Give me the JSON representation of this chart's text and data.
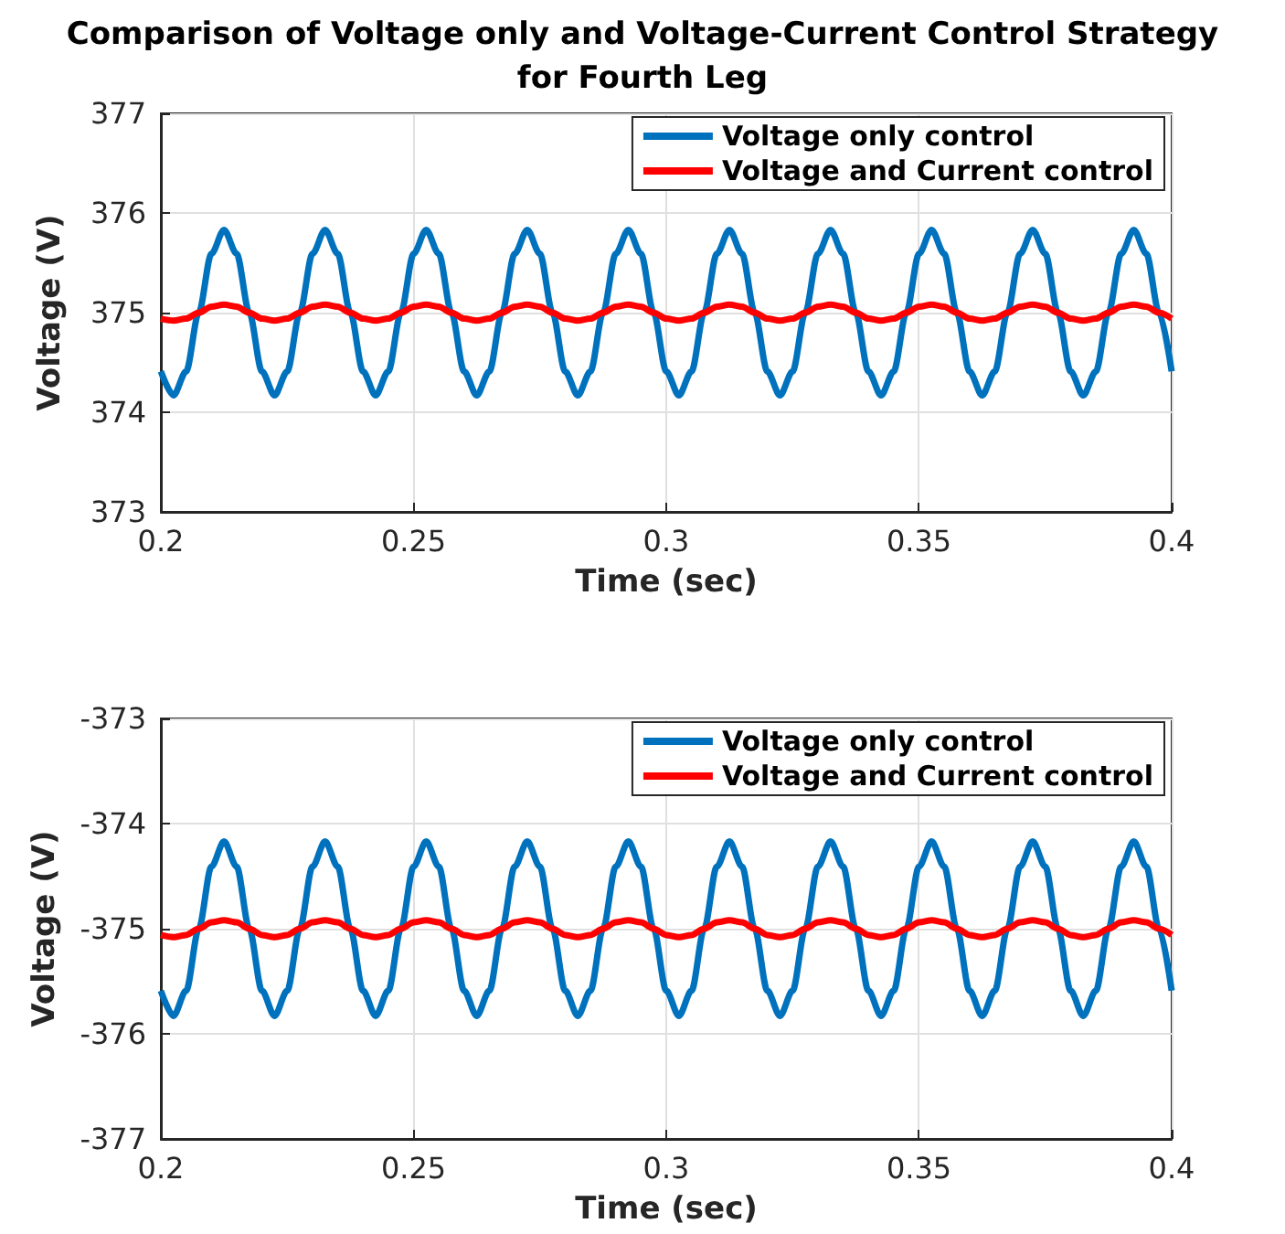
{
  "chart_data": [
    {
      "type": "line",
      "title": "Comparison of Voltage only and Voltage-Current Control Strategy\nfor Fourth Leg",
      "xlabel": "Time (sec)",
      "ylabel": "Voltage (V)",
      "x": [
        0.2,
        0.2025,
        0.205,
        0.2075,
        0.21,
        0.2125,
        0.215,
        0.2175,
        0.22,
        0.2225,
        0.225,
        0.2275,
        0.23,
        0.2325,
        0.235,
        0.2375,
        0.24,
        0.2425,
        0.245,
        0.2475,
        0.25,
        0.2525,
        0.255,
        0.2575,
        0.26,
        0.2625,
        0.265,
        0.2675,
        0.27,
        0.2725,
        0.275,
        0.2775,
        0.28,
        0.2825,
        0.285,
        0.2875,
        0.29,
        0.2925,
        0.295,
        0.2975,
        0.3,
        0.3025,
        0.305,
        0.3075,
        0.31,
        0.3125,
        0.315,
        0.3175,
        0.32,
        0.3225,
        0.325,
        0.3275,
        0.33,
        0.3325,
        0.335,
        0.3375,
        0.34,
        0.3425,
        0.345,
        0.3475,
        0.35,
        0.3525,
        0.355,
        0.3575,
        0.36,
        0.3625,
        0.365,
        0.3675,
        0.37,
        0.3725,
        0.375,
        0.3775,
        0.38,
        0.3825,
        0.385,
        0.3875,
        0.39,
        0.3925,
        0.395,
        0.3975,
        0.4
      ],
      "series": [
        {
          "name": "Voltage only control",
          "color": "#0072bd",
          "values": [
            374.41,
            374.17,
            374.41,
            375.0,
            375.59,
            375.83,
            375.59,
            375.0,
            374.41,
            374.17,
            374.41,
            375.0,
            375.59,
            375.83,
            375.59,
            375.0,
            374.41,
            374.17,
            374.41,
            375.0,
            375.59,
            375.83,
            375.59,
            375.0,
            374.41,
            374.17,
            374.41,
            375.0,
            375.59,
            375.83,
            375.59,
            375.0,
            374.41,
            374.17,
            374.41,
            375.0,
            375.59,
            375.83,
            375.59,
            375.0,
            374.41,
            374.17,
            374.41,
            375.0,
            375.59,
            375.83,
            375.59,
            375.0,
            374.41,
            374.17,
            374.41,
            375.0,
            375.59,
            375.83,
            375.59,
            375.0,
            374.41,
            374.17,
            374.41,
            375.0,
            375.59,
            375.83,
            375.59,
            375.0,
            374.41,
            374.17,
            374.41,
            375.0,
            375.59,
            375.83,
            375.59,
            375.0,
            374.41,
            374.17,
            374.41,
            375.0,
            375.59,
            375.83,
            375.59,
            375.0,
            374.41
          ]
        },
        {
          "name": "Voltage and Current control",
          "color": "#ff0000",
          "values": [
            374.94,
            374.92,
            374.94,
            375.0,
            375.06,
            375.08,
            375.06,
            375.0,
            374.94,
            374.92,
            374.94,
            375.0,
            375.06,
            375.08,
            375.06,
            375.0,
            374.94,
            374.92,
            374.94,
            375.0,
            375.06,
            375.08,
            375.06,
            375.0,
            374.94,
            374.92,
            374.94,
            375.0,
            375.06,
            375.08,
            375.06,
            375.0,
            374.94,
            374.92,
            374.94,
            375.0,
            375.06,
            375.08,
            375.06,
            375.0,
            374.94,
            374.92,
            374.94,
            375.0,
            375.06,
            375.08,
            375.06,
            375.0,
            374.94,
            374.92,
            374.94,
            375.0,
            375.06,
            375.08,
            375.06,
            375.0,
            374.94,
            374.92,
            374.94,
            375.0,
            375.06,
            375.08,
            375.06,
            375.0,
            374.94,
            374.92,
            374.94,
            375.0,
            375.06,
            375.08,
            375.06,
            375.0,
            374.94,
            374.92,
            374.94,
            375.0,
            375.06,
            375.08,
            375.06,
            375.0,
            374.94
          ]
        }
      ],
      "xlim": [
        0.2,
        0.4
      ],
      "xticks": [
        0.2,
        0.25,
        0.3,
        0.35,
        0.4
      ],
      "ylim": [
        373,
        377
      ],
      "yticks": [
        373,
        374,
        375,
        376,
        377
      ],
      "grid": true,
      "legend": "top right",
      "marker": "none",
      "line_style": "solid"
    },
    {
      "type": "line",
      "xlabel": "Time (sec)",
      "ylabel": "Voltage (V)",
      "x": [
        0.2,
        0.2025,
        0.205,
        0.2075,
        0.21,
        0.2125,
        0.215,
        0.2175,
        0.22,
        0.2225,
        0.225,
        0.2275,
        0.23,
        0.2325,
        0.235,
        0.2375,
        0.24,
        0.2425,
        0.245,
        0.2475,
        0.25,
        0.2525,
        0.255,
        0.2575,
        0.26,
        0.2625,
        0.265,
        0.2675,
        0.27,
        0.2725,
        0.275,
        0.2775,
        0.28,
        0.2825,
        0.285,
        0.2875,
        0.29,
        0.2925,
        0.295,
        0.2975,
        0.3,
        0.3025,
        0.305,
        0.3075,
        0.31,
        0.3125,
        0.315,
        0.3175,
        0.32,
        0.3225,
        0.325,
        0.3275,
        0.33,
        0.3325,
        0.335,
        0.3375,
        0.34,
        0.3425,
        0.345,
        0.3475,
        0.35,
        0.3525,
        0.355,
        0.3575,
        0.36,
        0.3625,
        0.365,
        0.3675,
        0.37,
        0.3725,
        0.375,
        0.3775,
        0.38,
        0.3825,
        0.385,
        0.3875,
        0.39,
        0.3925,
        0.395,
        0.3975,
        0.4
      ],
      "series": [
        {
          "name": "Voltage only control",
          "color": "#0072bd",
          "values": [
            -375.59,
            -375.83,
            -375.59,
            -375.0,
            -374.41,
            -374.17,
            -374.41,
            -375.0,
            -375.59,
            -375.83,
            -375.59,
            -375.0,
            -374.41,
            -374.17,
            -374.41,
            -375.0,
            -375.59,
            -375.83,
            -375.59,
            -375.0,
            -374.41,
            -374.17,
            -374.41,
            -375.0,
            -375.59,
            -375.83,
            -375.59,
            -375.0,
            -374.41,
            -374.17,
            -374.41,
            -375.0,
            -375.59,
            -375.83,
            -375.59,
            -375.0,
            -374.41,
            -374.17,
            -374.41,
            -375.0,
            -375.59,
            -375.83,
            -375.59,
            -375.0,
            -374.41,
            -374.17,
            -374.41,
            -375.0,
            -375.59,
            -375.83,
            -375.59,
            -375.0,
            -374.41,
            -374.17,
            -374.41,
            -375.0,
            -375.59,
            -375.83,
            -375.59,
            -375.0,
            -374.41,
            -374.17,
            -374.41,
            -375.0,
            -375.59,
            -375.83,
            -375.59,
            -375.0,
            -374.41,
            -374.17,
            -374.41,
            -375.0,
            -375.59,
            -375.83,
            -375.59,
            -375.0,
            -374.41,
            -374.17,
            -374.41,
            -375.0,
            -375.59
          ]
        },
        {
          "name": "Voltage and Current control",
          "color": "#ff0000",
          "values": [
            -375.06,
            -375.08,
            -375.06,
            -375.0,
            -374.94,
            -374.92,
            -374.94,
            -375.0,
            -375.06,
            -375.08,
            -375.06,
            -375.0,
            -374.94,
            -374.92,
            -374.94,
            -375.0,
            -375.06,
            -375.08,
            -375.06,
            -375.0,
            -374.94,
            -374.92,
            -374.94,
            -375.0,
            -375.06,
            -375.08,
            -375.06,
            -375.0,
            -374.94,
            -374.92,
            -374.94,
            -375.0,
            -375.06,
            -375.08,
            -375.06,
            -375.0,
            -374.94,
            -374.92,
            -374.94,
            -375.0,
            -375.06,
            -375.08,
            -375.06,
            -375.0,
            -374.94,
            -374.92,
            -374.94,
            -375.0,
            -375.06,
            -375.08,
            -375.06,
            -375.0,
            -374.94,
            -374.92,
            -374.94,
            -375.0,
            -375.06,
            -375.08,
            -375.06,
            -375.0,
            -374.94,
            -374.92,
            -374.94,
            -375.0,
            -375.06,
            -375.08,
            -375.06,
            -375.0,
            -374.94,
            -374.92,
            -374.94,
            -375.0,
            -375.06,
            -375.08,
            -375.06,
            -375.0,
            -374.94,
            -374.92,
            -374.94,
            -375.0,
            -375.06
          ]
        }
      ],
      "xlim": [
        0.2,
        0.4
      ],
      "xticks": [
        0.2,
        0.25,
        0.3,
        0.35,
        0.4
      ],
      "ylim": [
        -377,
        -373
      ],
      "yticks": [
        -377,
        -376,
        -375,
        -374,
        -373
      ],
      "grid": true,
      "legend": "top right",
      "marker": "none",
      "line_style": "solid"
    }
  ]
}
